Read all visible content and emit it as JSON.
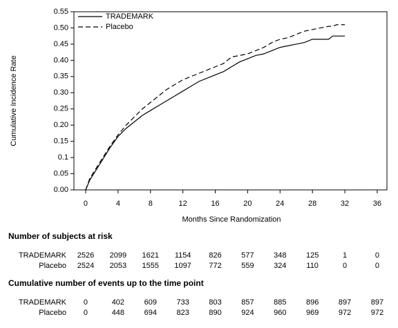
{
  "chart_data": {
    "type": "line",
    "x_label": "Months Since Randomization",
    "y_label": "Cumulative Incidence Rate",
    "x": [
      0,
      0.5,
      1,
      2,
      3,
      4,
      5,
      6,
      7,
      8,
      9,
      10,
      11,
      12,
      13,
      14,
      15,
      16,
      17,
      18,
      19,
      20,
      21,
      22,
      23,
      24,
      25,
      26,
      27,
      28,
      29,
      30,
      30.5,
      31,
      32
    ],
    "series": [
      {
        "name": "TRADEMARK",
        "color": "#000000",
        "dash": false,
        "values": [
          0,
          0.03,
          0.05,
          0.09,
          0.13,
          0.165,
          0.19,
          0.21,
          0.23,
          0.245,
          0.26,
          0.275,
          0.29,
          0.305,
          0.32,
          0.335,
          0.345,
          0.355,
          0.365,
          0.38,
          0.395,
          0.405,
          0.415,
          0.42,
          0.43,
          0.44,
          0.445,
          0.45,
          0.455,
          0.465,
          0.465,
          0.465,
          0.475,
          0.475,
          0.475
        ]
      },
      {
        "name": "Placebo",
        "color": "#000000",
        "dash": true,
        "values": [
          0,
          0.035,
          0.055,
          0.095,
          0.135,
          0.17,
          0.2,
          0.225,
          0.25,
          0.27,
          0.29,
          0.31,
          0.325,
          0.34,
          0.35,
          0.36,
          0.37,
          0.38,
          0.39,
          0.41,
          0.415,
          0.42,
          0.43,
          0.44,
          0.455,
          0.465,
          0.47,
          0.48,
          0.49,
          0.495,
          0.5,
          0.505,
          0.505,
          0.51,
          0.51
        ]
      }
    ],
    "xlim": [
      -1.45,
      37.2
    ],
    "ylim": [
      0,
      0.55
    ],
    "xticks": [
      0,
      4,
      8,
      12,
      16,
      20,
      24,
      28,
      32,
      36
    ],
    "yticks": [
      {
        "value": 0,
        "label": "0.00"
      },
      {
        "value": 0.05,
        "label": "0.05"
      },
      0.1,
      {
        "value": 0.15,
        "label": "0.15"
      },
      {
        "value": 0.2,
        "label": "0.20"
      },
      {
        "value": 0.25,
        "label": "0.25"
      },
      {
        "value": 0.3,
        "label": "0.30"
      },
      {
        "value": 0.35,
        "label": "0.35"
      },
      {
        "value": 0.4,
        "label": "0.40"
      },
      {
        "value": 0.45,
        "label": "0.45"
      },
      {
        "value": 0.5,
        "label": "0.50"
      },
      {
        "value": 0.55,
        "label": "0.55"
      }
    ],
    "legend": "upper-left"
  },
  "risk_tables": [
    {
      "title": "Number of subjects at risk",
      "rows": [
        {
          "label": "TRADEMARK",
          "values": [
            2526,
            2099,
            1621,
            1154,
            826,
            577,
            348,
            125,
            1,
            0
          ]
        },
        {
          "label": "Placebo",
          "values": [
            2524,
            2053,
            1555,
            1097,
            772,
            559,
            324,
            110,
            0,
            0
          ]
        }
      ]
    },
    {
      "title": "Cumulative number of events up to the time point",
      "rows": [
        {
          "label": "TRADEMARK",
          "values": [
            0,
            402,
            609,
            733,
            803,
            857,
            885,
            896,
            897,
            897
          ]
        },
        {
          "label": "Placebo",
          "values": [
            0,
            448,
            694,
            823,
            890,
            924,
            960,
            969,
            972,
            972
          ]
        }
      ]
    }
  ]
}
